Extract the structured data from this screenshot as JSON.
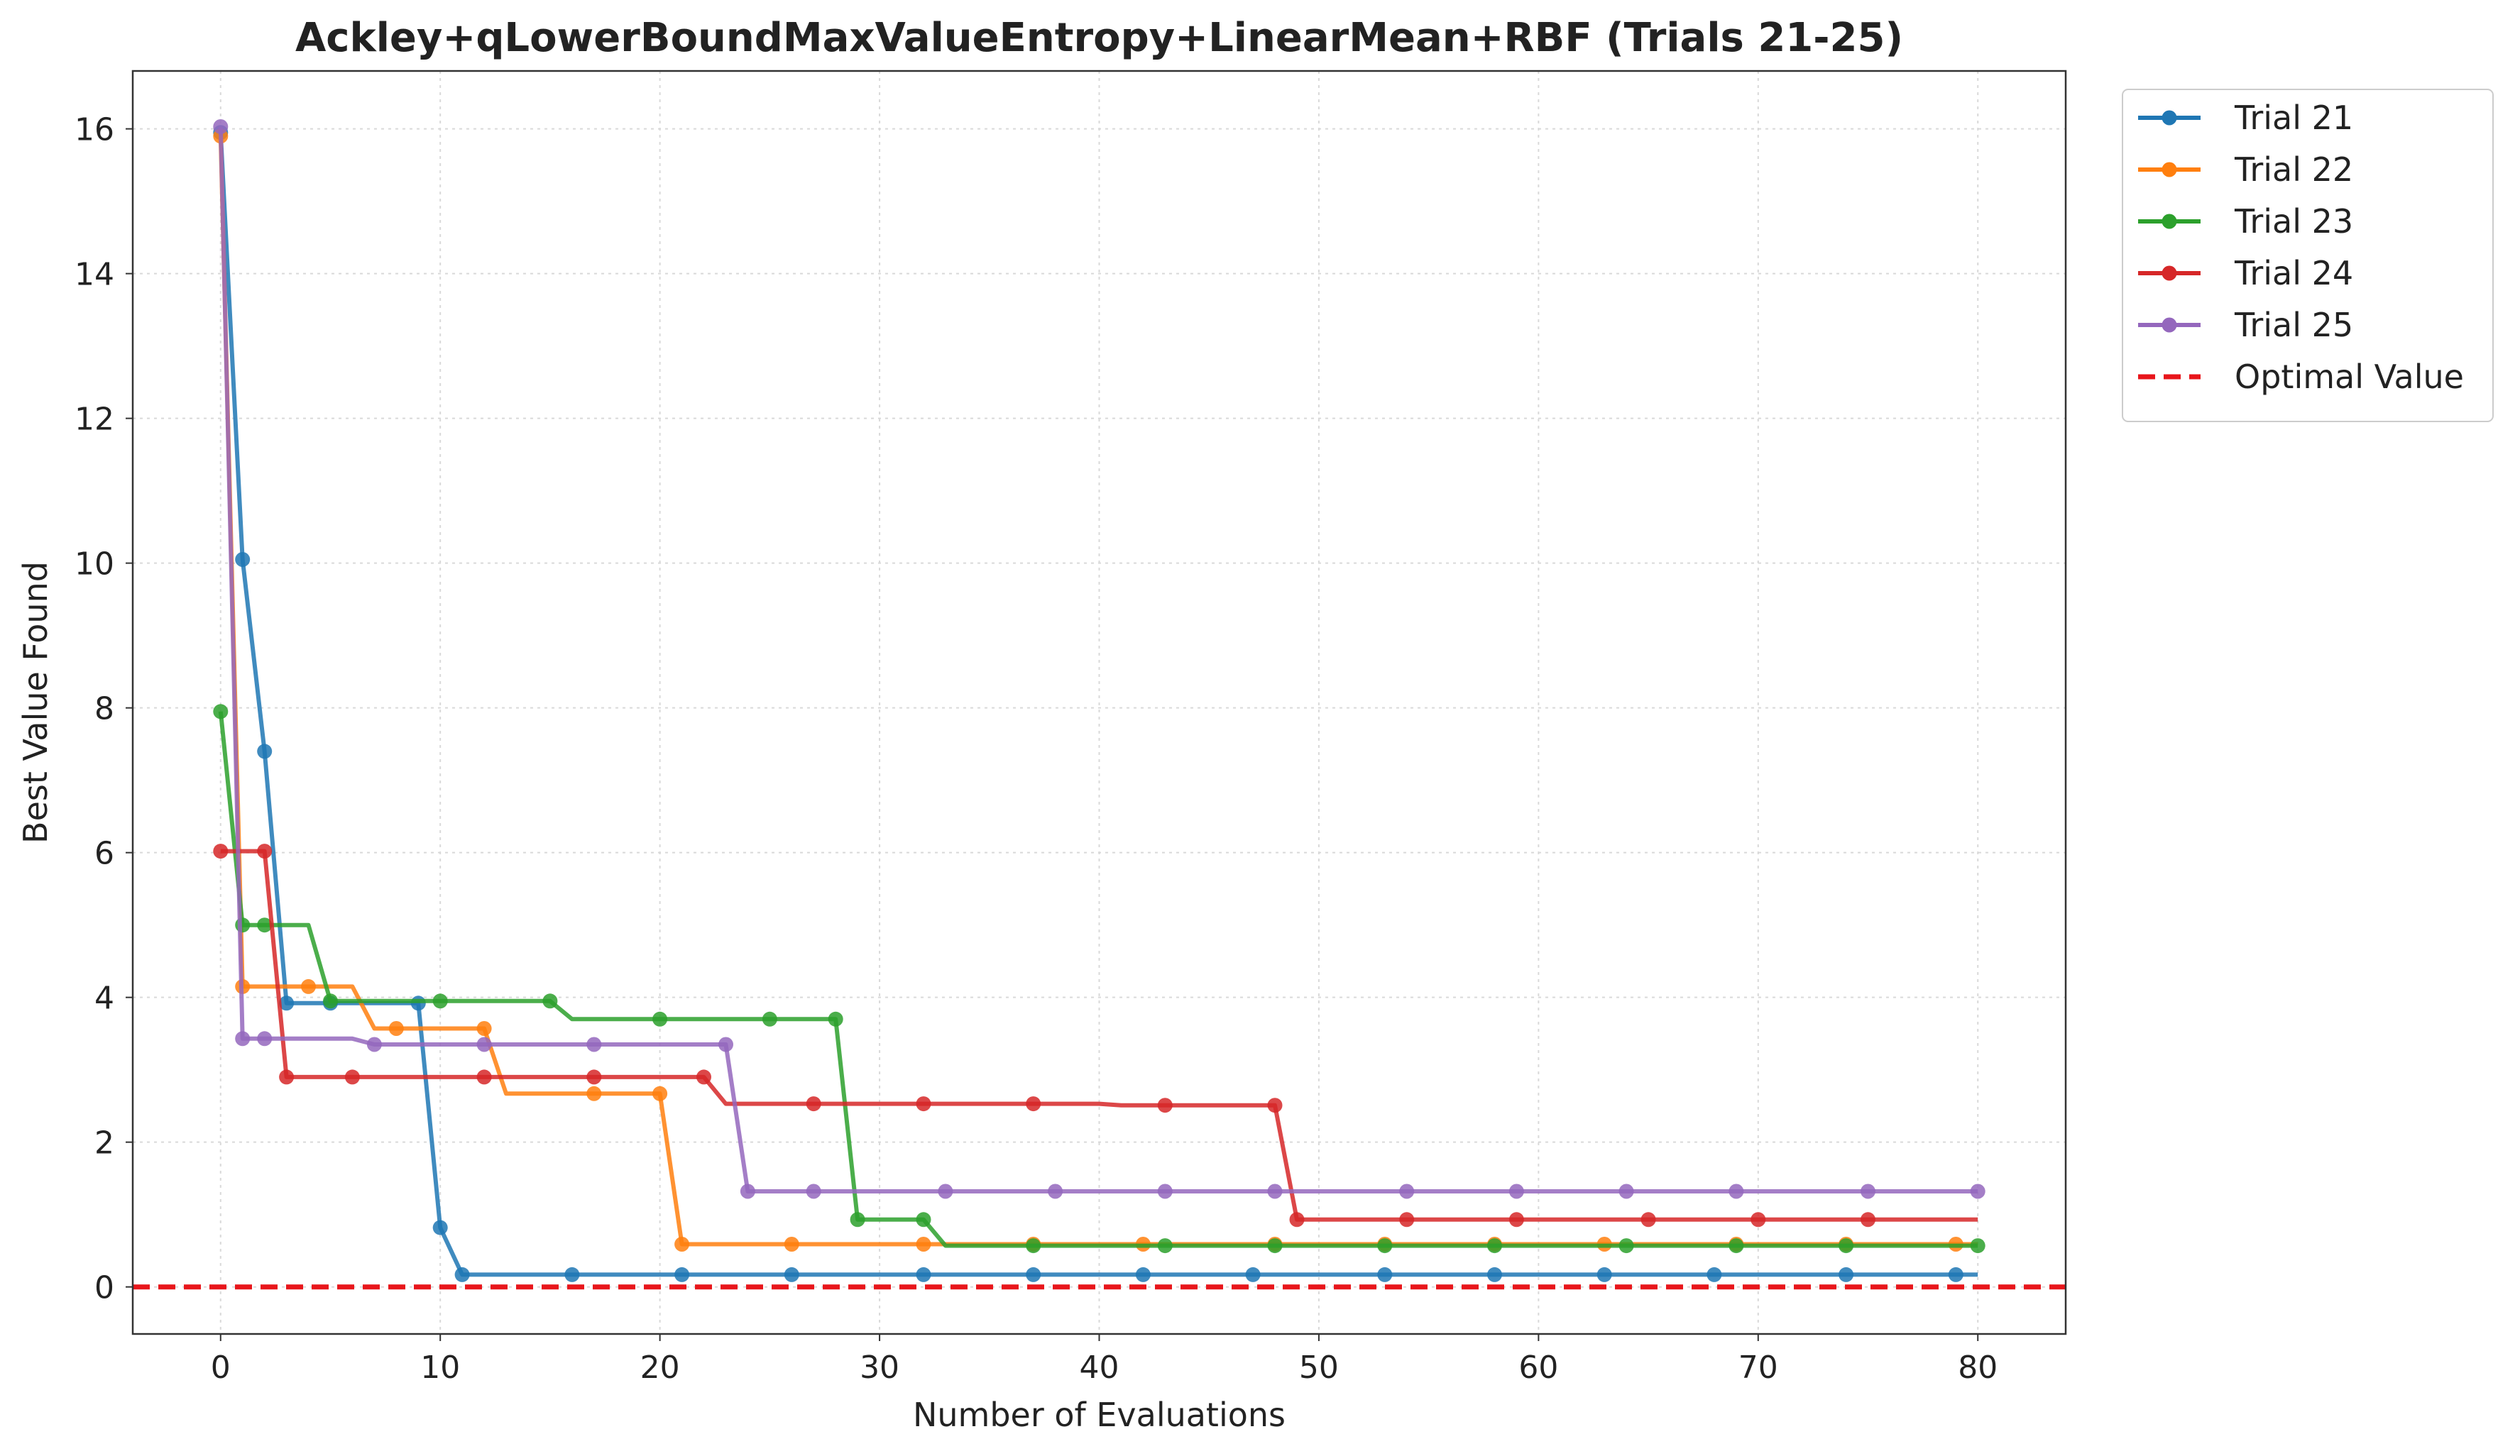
{
  "chart_data": {
    "type": "line",
    "title": "Ackley+qLowerBoundMaxValueEntropy+LinearMean+RBF (Trials 21-25)",
    "xlabel": "Number of Evaluations",
    "ylabel": "Best Value Found",
    "xlim": [
      -4,
      84
    ],
    "ylim": [
      -0.65,
      16.8
    ],
    "xticks": [
      0,
      10,
      20,
      30,
      40,
      50,
      60,
      70,
      80
    ],
    "yticks": [
      0,
      2,
      4,
      6,
      8,
      10,
      12,
      14,
      16
    ],
    "grid": true,
    "legend_position": "outside-top-right",
    "optimal_value": 0,
    "optimal_label": "Optimal Value",
    "optimal_color": "#e8161b",
    "series": [
      {
        "name": "Trial 21",
        "color": "#1f77b4",
        "points": [
          [
            0,
            15.95
          ],
          [
            1,
            10.05
          ],
          [
            2,
            7.4
          ],
          [
            3,
            3.92
          ],
          [
            4,
            3.92
          ],
          [
            5,
            3.92
          ],
          [
            6,
            3.92
          ],
          [
            7,
            3.92
          ],
          [
            8,
            3.92
          ],
          [
            9,
            3.92
          ],
          [
            10,
            0.82
          ],
          [
            11,
            0.17
          ],
          [
            80,
            0.17
          ]
        ],
        "markers_x": [
          0,
          1,
          2,
          3,
          5,
          9,
          10,
          11,
          16,
          21,
          26,
          32,
          37,
          42,
          47,
          53,
          58,
          63,
          68,
          74,
          79
        ]
      },
      {
        "name": "Trial 22",
        "color": "#ff7f0e",
        "points": [
          [
            0,
            15.9
          ],
          [
            1,
            4.15
          ],
          [
            6,
            4.15
          ],
          [
            7,
            3.57
          ],
          [
            12,
            3.57
          ],
          [
            13,
            2.67
          ],
          [
            20,
            2.67
          ],
          [
            21,
            0.59
          ],
          [
            32,
            0.59
          ],
          [
            33,
            0.59
          ],
          [
            80,
            0.59
          ]
        ],
        "markers_x": [
          0,
          1,
          4,
          8,
          12,
          17,
          20,
          21,
          26,
          32,
          37,
          42,
          48,
          53,
          58,
          63,
          69,
          74,
          79
        ]
      },
      {
        "name": "Trial 23",
        "color": "#2ca02c",
        "points": [
          [
            0,
            7.95
          ],
          [
            1,
            5.0
          ],
          [
            4,
            5.0
          ],
          [
            5,
            3.95
          ],
          [
            15,
            3.95
          ],
          [
            16,
            3.7
          ],
          [
            28,
            3.7
          ],
          [
            29,
            0.93
          ],
          [
            32,
            0.93
          ],
          [
            33,
            0.57
          ],
          [
            80,
            0.57
          ]
        ],
        "markers_x": [
          0,
          1,
          2,
          5,
          10,
          15,
          20,
          25,
          28,
          29,
          32,
          37,
          43,
          48,
          53,
          58,
          64,
          69,
          74,
          80
        ]
      },
      {
        "name": "Trial 24",
        "color": "#d62728",
        "points": [
          [
            0,
            6.02
          ],
          [
            2,
            6.02
          ],
          [
            3,
            2.9
          ],
          [
            22,
            2.9
          ],
          [
            23,
            2.53
          ],
          [
            40,
            2.53
          ],
          [
            41,
            2.51
          ],
          [
            48,
            2.51
          ],
          [
            49,
            0.93
          ],
          [
            80,
            0.93
          ]
        ],
        "markers_x": [
          0,
          2,
          3,
          6,
          12,
          17,
          22,
          27,
          32,
          37,
          43,
          48,
          49,
          54,
          59,
          65,
          70,
          75
        ]
      },
      {
        "name": "Trial 25",
        "color": "#9467bd",
        "points": [
          [
            0,
            16.03
          ],
          [
            1,
            3.43
          ],
          [
            6,
            3.43
          ],
          [
            7,
            3.35
          ],
          [
            23,
            3.35
          ],
          [
            24,
            1.32
          ],
          [
            80,
            1.32
          ]
        ],
        "markers_x": [
          0,
          1,
          2,
          7,
          12,
          17,
          23,
          24,
          27,
          33,
          38,
          43,
          48,
          54,
          59,
          64,
          69,
          75,
          80
        ]
      }
    ]
  }
}
